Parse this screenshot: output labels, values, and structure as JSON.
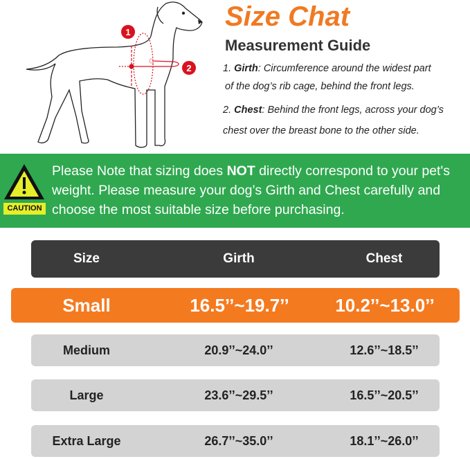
{
  "title": "Size Chat",
  "subtitle": "Measurement Guide",
  "guide": {
    "item1_num": "1.",
    "item1_label": "Girth",
    "item1_text": ": Circumference around the widest part",
    "item1_text2": "of the dog’s rib cage, behind the front legs.",
    "item2_num": "2.",
    "item2_label": "Chest",
    "item2_text": ":  Behind the front legs, across your dog’s",
    "item2_text2": "chest over the breast bone to the other side."
  },
  "diagram": {
    "marker1": "1",
    "marker2": "2"
  },
  "caution": {
    "label": "CAUTION",
    "icon": "warning-triangle-icon",
    "note_pre": "Please Note that sizing does ",
    "note_bold": "NOT",
    "note_post": " directly correspond to your pet's weight. Please measure your dog’s Girth and Chest carefully and choose the most suitable size before purchasing."
  },
  "colors": {
    "accent": "#f07a22",
    "banner": "#2fa84f",
    "header": "#3b3b3b",
    "row": "#d3d3d3",
    "marker": "#d9121f"
  },
  "table": {
    "headers": [
      "Size",
      "Girth",
      "Chest"
    ],
    "rows": [
      {
        "size": "Small",
        "girth": "16.5’’~19.7’’",
        "chest": "10.2’’~13.0’’",
        "highlighted": true
      },
      {
        "size": "Medium",
        "girth": "20.9’’~24.0’’",
        "chest": "12.6’’~18.5’’"
      },
      {
        "size": "Large",
        "girth": "23.6’’~29.5’’",
        "chest": "16.5’’~20.5’’"
      },
      {
        "size": "Extra Large",
        "girth": "26.7’’~35.0’’",
        "chest": "18.1’’~26.0’’"
      }
    ]
  }
}
